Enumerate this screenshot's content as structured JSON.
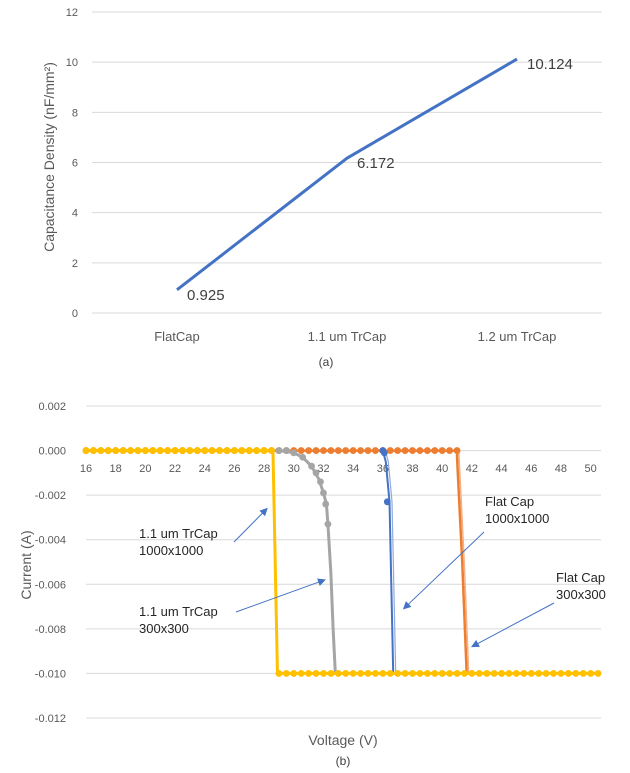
{
  "captions": {
    "a": "(a)",
    "b": "(b)"
  },
  "chart_data": [
    {
      "type": "line",
      "categories": [
        "FlatCap",
        "1.1 um TrCap",
        "1.2 um TrCap"
      ],
      "series": [
        {
          "values": [
            0.925,
            6.172,
            10.124
          ],
          "color": "#4472C4"
        }
      ],
      "data_labels": [
        "0.925",
        "6.172",
        "10.124"
      ],
      "ylabel": "Capacitance Density (nF/mm²)",
      "ylim": [
        0,
        12
      ],
      "yticks": [
        "0",
        "2",
        "4",
        "6",
        "8",
        "10",
        "12"
      ],
      "grid": true
    },
    {
      "type": "line",
      "xlabel": "Voltage (V)",
      "ylabel": "Current (A)",
      "xlim": [
        16,
        50.7
      ],
      "ylim": [
        -0.012,
        0.002
      ],
      "xticks": [
        "16",
        "18",
        "20",
        "22",
        "24",
        "26",
        "28",
        "30",
        "32",
        "34",
        "36",
        "38",
        "40",
        "42",
        "44",
        "46",
        "48",
        "50"
      ],
      "yticks": [
        "0.002",
        "0.000",
        "-0.002",
        "-0.004",
        "-0.006",
        "-0.008",
        "-0.010",
        "-0.012"
      ],
      "grid": true,
      "series": [
        {
          "key": "flat300",
          "color": "#ED7D31",
          "x": [
            16,
            41.0,
            41.0,
            41.35,
            41.65
          ],
          "y": [
            0,
            0,
            -0.0003,
            -0.005,
            -0.01
          ],
          "markers": "all_flat"
        },
        {
          "key": "flat1000",
          "color": "#4472C4",
          "x": [
            36.0,
            36.2,
            36.45,
            36.7
          ],
          "y": [
            0,
            -0.0005,
            -0.0023,
            -0.01
          ],
          "markers": [
            [
              36.0,
              0
            ],
            [
              36.1,
              -0.0001
            ],
            [
              36.3,
              -0.0023
            ]
          ]
        },
        {
          "key": "tr300",
          "color": "#A5A5A5",
          "x": [
            29.0,
            30.0,
            30.6,
            31.2,
            31.7,
            32.0,
            32.2,
            32.3,
            32.5,
            32.65,
            32.8
          ],
          "y": [
            0,
            -0.0001,
            -0.0003,
            -0.0007,
            -0.0013,
            -0.0019,
            -0.0024,
            -0.0033,
            -0.0055,
            -0.008,
            -0.01
          ],
          "markers": [
            [
              29.0,
              0
            ],
            [
              29.5,
              0
            ],
            [
              30.0,
              -0.0001
            ],
            [
              30.6,
              -0.0003
            ],
            [
              31.2,
              -0.0007
            ],
            [
              31.5,
              -0.001
            ],
            [
              31.8,
              -0.0014
            ],
            [
              32.0,
              -0.0019
            ],
            [
              32.15,
              -0.0024
            ],
            [
              32.3,
              -0.0033
            ]
          ]
        },
        {
          "key": "tr1000",
          "color": "#FFC000",
          "x": [
            16,
            28.6,
            28.6,
            28.9,
            50.7
          ],
          "y": [
            0,
            0,
            -0.0001,
            -0.01,
            -0.01
          ],
          "markers": "flat_then_bottom"
        }
      ],
      "annotations": [
        {
          "lines": [
            "1.1 um TrCap",
            "1000x1000"
          ],
          "arrow_to": [
            28.2,
            -0.0026
          ]
        },
        {
          "lines": [
            "1.1 um TrCap",
            "300x300"
          ],
          "arrow_to": [
            32.1,
            -0.0058
          ]
        },
        {
          "lines": [
            "Flat Cap",
            "1000x1000"
          ],
          "arrow_to": [
            37.4,
            -0.0071
          ]
        },
        {
          "lines": [
            "Flat Cap",
            "300x300"
          ],
          "arrow_to": [
            42.0,
            -0.0088
          ]
        }
      ]
    }
  ]
}
